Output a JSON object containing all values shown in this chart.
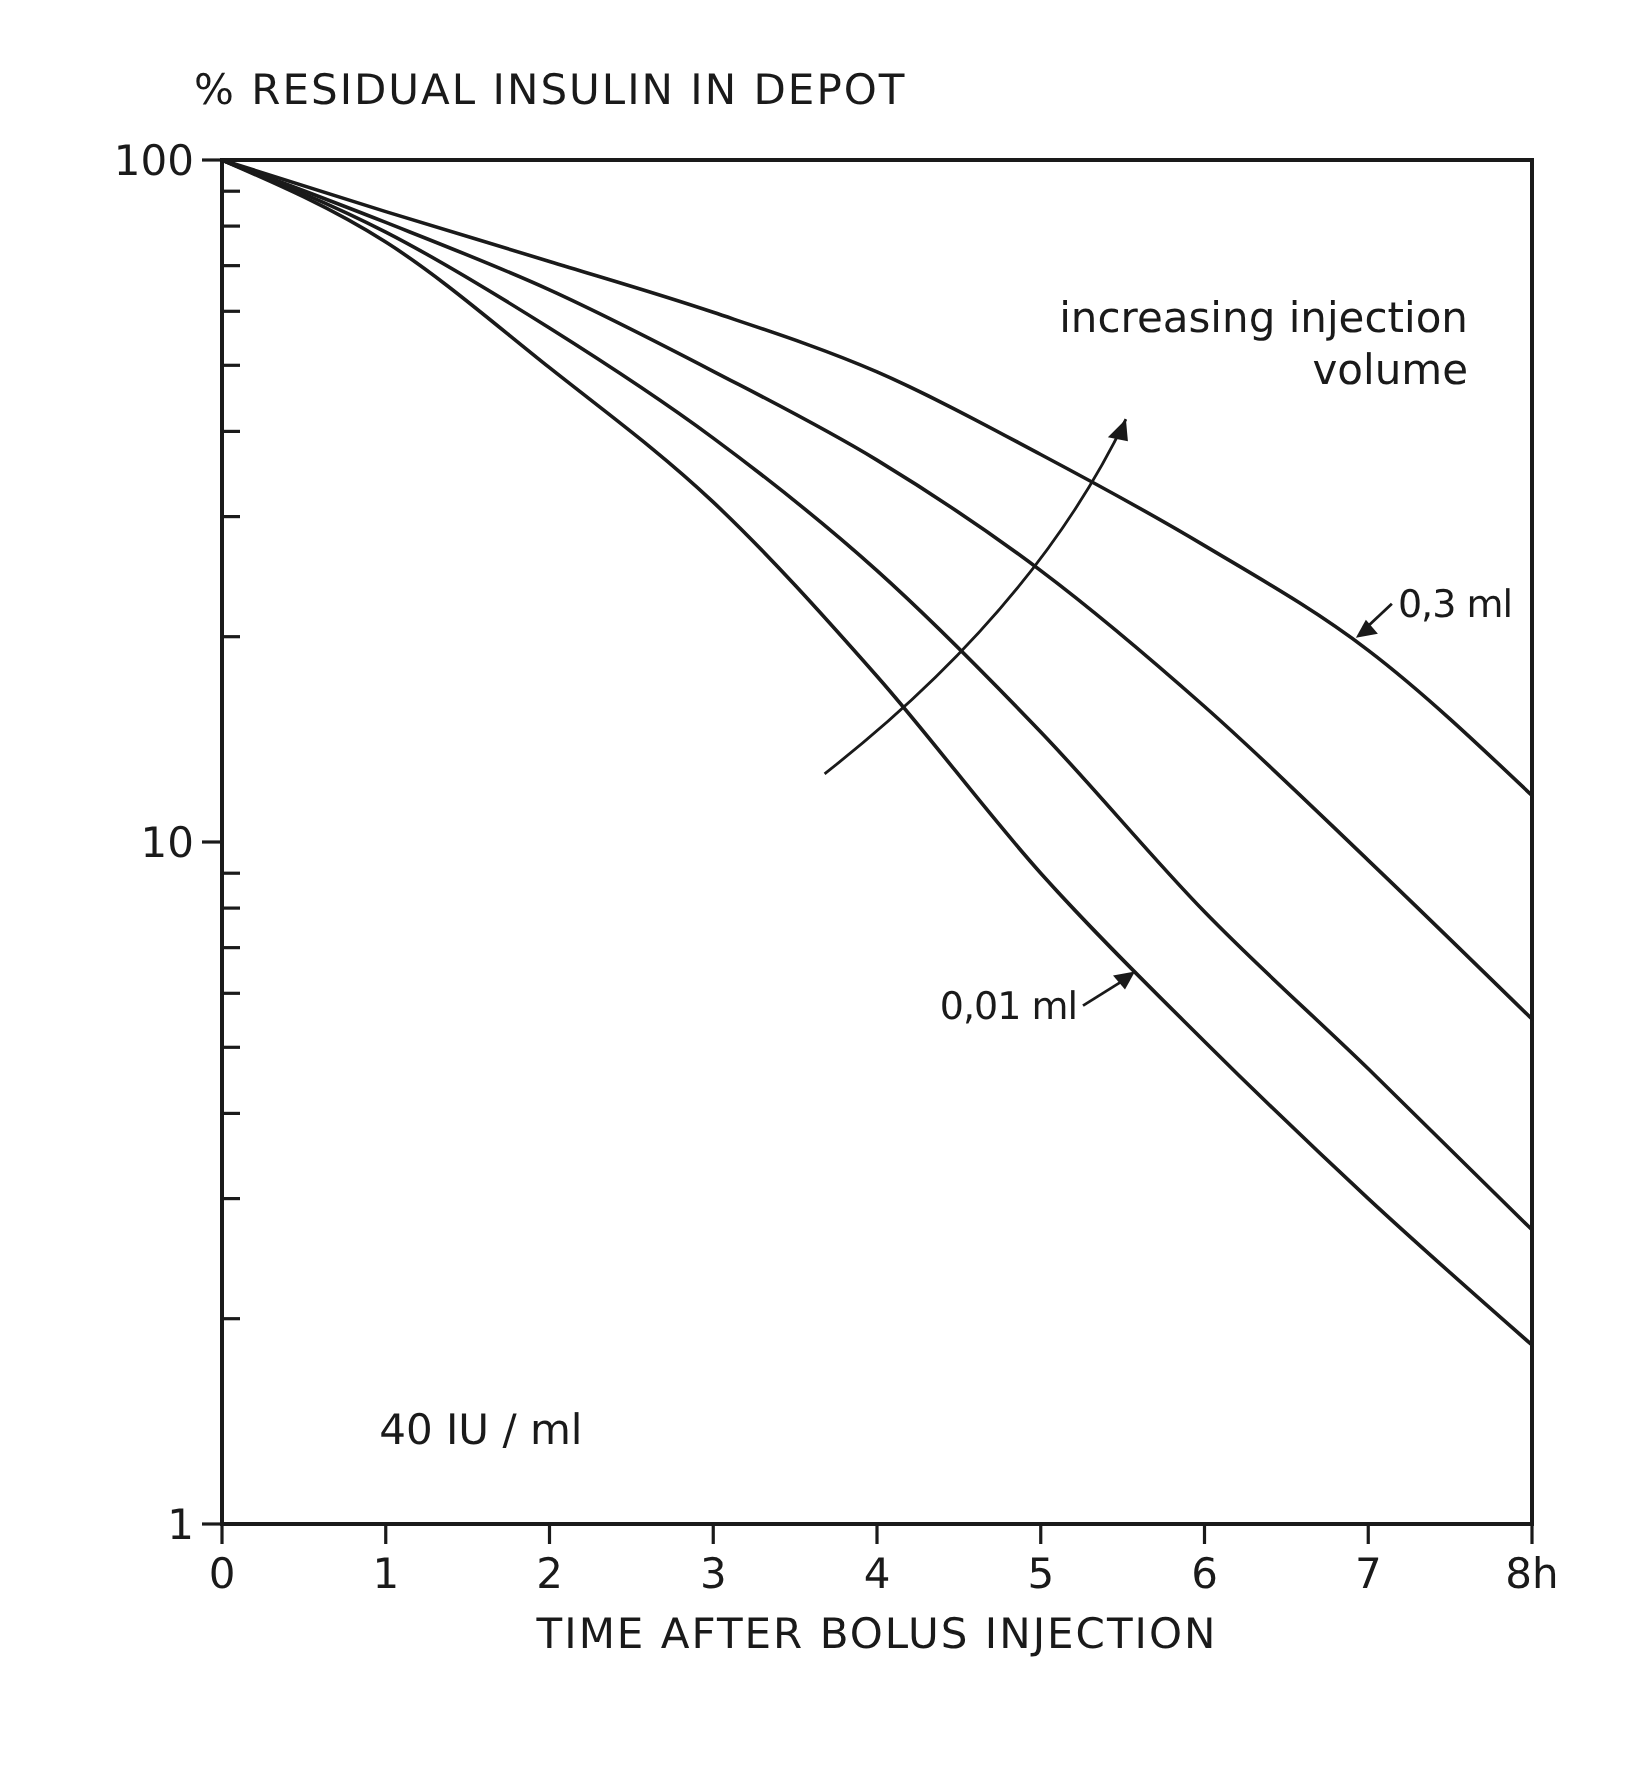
{
  "chart_data": {
    "type": "line",
    "ylabel": "% RESIDUAL INSULIN IN DEPOT",
    "xlabel": "TIME AFTER BOLUS INJECTION",
    "log": "y",
    "grid": false,
    "marker": "none",
    "line_style": "solid",
    "x": [
      0,
      1,
      2,
      3,
      4,
      5,
      6,
      7,
      8
    ],
    "xlim": [
      0,
      8
    ],
    "xticks": [
      0,
      1,
      2,
      3,
      4,
      5,
      6,
      7,
      {
        "value": 8,
        "label": "8h"
      }
    ],
    "ylim": [
      1,
      100
    ],
    "yticks": [
      1,
      {
        "value": 2,
        "label": null
      },
      {
        "value": 3,
        "label": null
      },
      {
        "value": 4,
        "label": null
      },
      {
        "value": 5,
        "label": null
      },
      {
        "value": 6,
        "label": null
      },
      {
        "value": 7,
        "label": null
      },
      {
        "value": 8,
        "label": null
      },
      {
        "value": 9,
        "label": null
      },
      10,
      {
        "value": 20,
        "label": null
      },
      {
        "value": 30,
        "label": null
      },
      {
        "value": 40,
        "label": null
      },
      {
        "value": 50,
        "label": null
      },
      {
        "value": 60,
        "label": null
      },
      {
        "value": 70,
        "label": null
      },
      {
        "value": 80,
        "label": null
      },
      {
        "value": 90,
        "label": null
      },
      100
    ],
    "series": [
      {
        "color": "#1a1a1a",
        "values": [
          100,
          75.8,
          49.6,
          31.5,
          17.5,
          9,
          5.1,
          3,
          1.83
        ]
      },
      {
        "color": "#1a1a1a",
        "values": [
          100,
          78.4,
          56.7,
          39.1,
          25,
          14.5,
          7.9,
          4.65,
          2.7
        ]
      },
      {
        "color": "#1a1a1a",
        "values": [
          100,
          81,
          64.5,
          49,
          36.3,
          25,
          15.8,
          9.4,
          5.5
        ]
      },
      {
        "color": "#1a1a1a",
        "values": [
          100,
          84,
          71,
          59.8,
          48.9,
          37,
          27.2,
          19.1,
          11.7
        ]
      }
    ],
    "annotations": [
      "increasing injection volume",
      "40 IU / ml",
      {
        "text": "0,3 ml",
        "x": 6.9,
        "y": 19.8
      },
      {
        "text": "0,01 ml",
        "x": 5.6,
        "y": 6.5
      }
    ]
  }
}
